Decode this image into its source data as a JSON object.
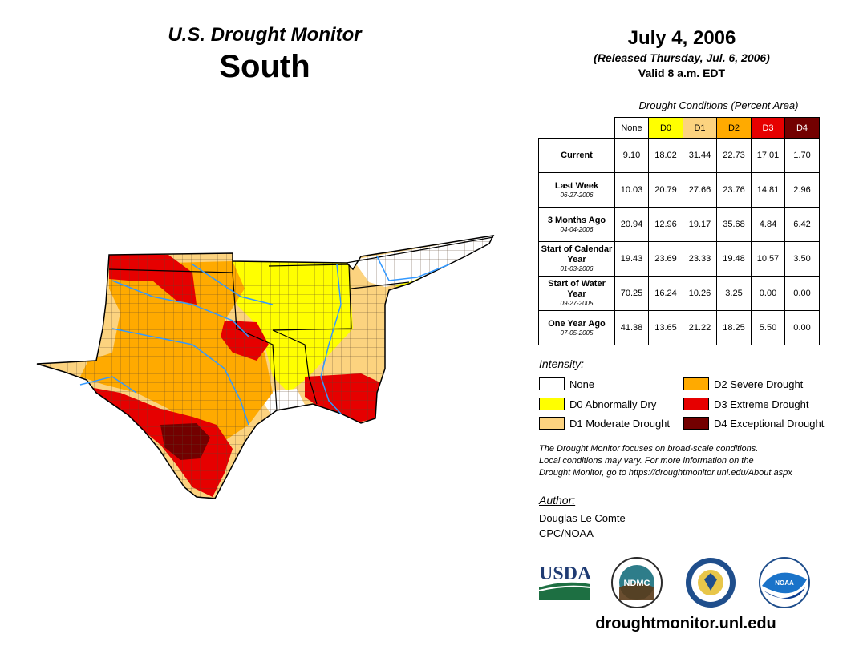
{
  "header": {
    "title": "U.S. Drought Monitor",
    "region": "South",
    "date": "July 4, 2006",
    "released": "(Released Thursday, Jul. 6, 2006)",
    "valid": "Valid 8 a.m. EDT"
  },
  "stats": {
    "title": "Drought Conditions (Percent Area)",
    "columns": [
      "None",
      "D0",
      "D1",
      "D2",
      "D3",
      "D4"
    ],
    "column_colors": [
      "#ffffff",
      "#ffff00",
      "#fcd37f",
      "#ffaa00",
      "#e60000",
      "#730000"
    ],
    "rows": [
      {
        "label": "Current",
        "sub": "",
        "values": [
          "9.10",
          "18.02",
          "31.44",
          "22.73",
          "17.01",
          "1.70"
        ]
      },
      {
        "label": "Last Week",
        "sub": "06-27-2006",
        "values": [
          "10.03",
          "20.79",
          "27.66",
          "23.76",
          "14.81",
          "2.96"
        ]
      },
      {
        "label": "3 Months Ago",
        "sub": "04-04-2006",
        "values": [
          "20.94",
          "12.96",
          "19.17",
          "35.68",
          "4.84",
          "6.42"
        ]
      },
      {
        "label": "Start of Calendar Year",
        "sub": "01-03-2006",
        "values": [
          "19.43",
          "23.69",
          "23.33",
          "19.48",
          "10.57",
          "3.50"
        ]
      },
      {
        "label": "Start of Water Year",
        "sub": "09-27-2005",
        "values": [
          "70.25",
          "16.24",
          "10.26",
          "3.25",
          "0.00",
          "0.00"
        ]
      },
      {
        "label": "One Year Ago",
        "sub": "07-05-2005",
        "values": [
          "41.38",
          "13.65",
          "21.22",
          "18.25",
          "5.50",
          "0.00"
        ]
      }
    ]
  },
  "legend": {
    "title": "Intensity:",
    "items": [
      {
        "label": "None",
        "color": "#ffffff"
      },
      {
        "label": "D0 Abnormally Dry",
        "color": "#ffff00"
      },
      {
        "label": "D1 Moderate Drought",
        "color": "#fcd37f"
      },
      {
        "label": "D2 Severe Drought",
        "color": "#ffaa00"
      },
      {
        "label": "D3 Extreme Drought",
        "color": "#e60000"
      },
      {
        "label": "D4 Exceptional Drought",
        "color": "#730000"
      }
    ]
  },
  "disclaimer": {
    "line1": "The Drought Monitor focuses on broad-scale conditions.",
    "line2": "Local conditions may vary. For more information on the",
    "line3": "Drought Monitor, go to https://droughtmonitor.unl.edu/About.aspx"
  },
  "author": {
    "title": "Author:",
    "name": "Douglas Le Comte",
    "org": "CPC/NOAA"
  },
  "logos": {
    "usda": "USDA",
    "ndmc": "NDMC",
    "noaa": "NOAA"
  },
  "footer": {
    "url": "droughtmonitor.unl.edu"
  }
}
